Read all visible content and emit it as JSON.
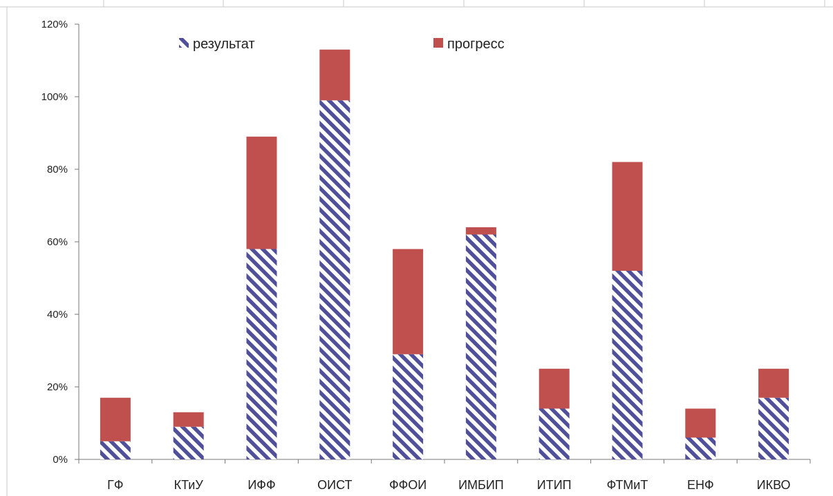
{
  "chart_data": {
    "type": "bar",
    "stacked": true,
    "categories": [
      "ГФ",
      "КТиУ",
      "ИФФ",
      "ОИСТ",
      "ФФОИ",
      "ИМБИП",
      "ИТИП",
      "ФТМиТ",
      "ЕНФ",
      "ИКВО"
    ],
    "series": [
      {
        "name": "результат",
        "values": [
          0.05,
          0.09,
          0.58,
          0.99,
          0.29,
          0.62,
          0.14,
          0.52,
          0.06,
          0.17
        ],
        "color": "#4f4f9a",
        "pattern": "diagonal-hatch"
      },
      {
        "name": "прогресс",
        "values": [
          0.12,
          0.04,
          0.31,
          0.14,
          0.29,
          0.02,
          0.11,
          0.3,
          0.08,
          0.08
        ],
        "color": "#c0504d"
      }
    ],
    "ylim": [
      0,
      1.2
    ],
    "yticks": [
      0,
      0.2,
      0.4,
      0.6,
      0.8,
      1.0,
      1.2
    ],
    "ytick_labels": [
      "0%",
      "20%",
      "40%",
      "60%",
      "80%",
      "100%",
      "120%"
    ],
    "legend_position": "top",
    "grid": false
  }
}
